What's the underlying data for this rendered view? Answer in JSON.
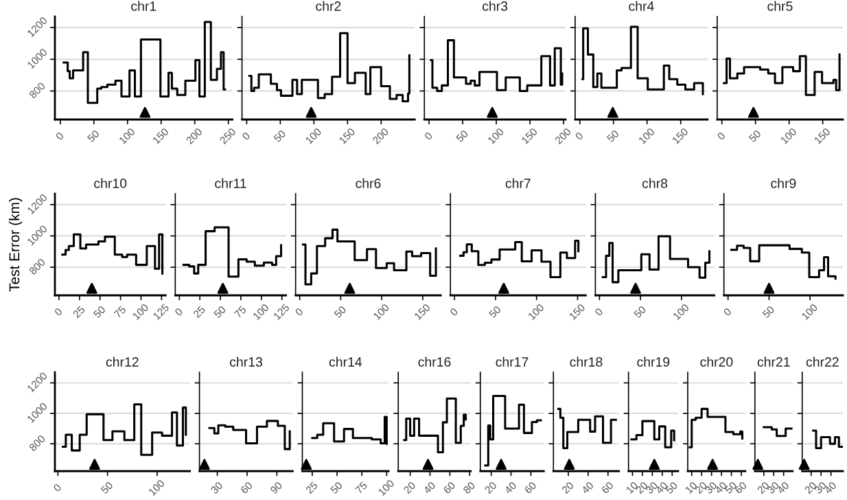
{
  "chart_data": [
    {
      "type": "step",
      "title": "chr1",
      "xlim": [
        -8,
        256
      ],
      "xticks": [
        0,
        50,
        100,
        150,
        200,
        250
      ],
      "ylim": [
        620,
        1270
      ],
      "yticks": [
        800,
        1000,
        1200
      ],
      "grid": "y",
      "series": [
        {
          "color": "#000000",
          "x": [
            5,
            11,
            14,
            19,
            34,
            41,
            55,
            61,
            70,
            82,
            91,
            103,
            111,
            120,
            149,
            161,
            166,
            174,
            186,
            201,
            207,
            215,
            224,
            233,
            239,
            243,
            245
          ],
          "values": [
            980,
            925,
            880,
            930,
            1045,
            725,
            815,
            825,
            840,
            865,
            765,
            930,
            765,
            1125,
            765,
            915,
            815,
            775,
            865,
            995,
            765,
            1235,
            870,
            940,
            1045,
            810,
            810
          ]
        },
        {
          "type": "scatter",
          "marker": "triangle",
          "color": "#000000",
          "x": [
            126
          ],
          "values": [
            665
          ]
        }
      ]
    },
    {
      "type": "step",
      "title": "chr2",
      "xlim": [
        -7,
        250
      ],
      "xticks": [
        0,
        50,
        100,
        150,
        200
      ],
      "ylim": [
        620,
        1270
      ],
      "yticks": [
        800,
        1000,
        1200
      ],
      "grid": "y",
      "tick_labels": "x",
      "series": [
        {
          "color": "#000000",
          "x": [
            4,
            7,
            11,
            18,
            36,
            45,
            51,
            68,
            75,
            82,
            106,
            116,
            127,
            139,
            150,
            161,
            177,
            184,
            200,
            213,
            223,
            232,
            240,
            242
          ],
          "values": [
            895,
            800,
            820,
            905,
            845,
            805,
            770,
            870,
            780,
            870,
            755,
            780,
            890,
            1165,
            850,
            915,
            780,
            950,
            830,
            750,
            775,
            735,
            785,
            1025
          ]
        },
        {
          "type": "scatter",
          "marker": "triangle",
          "color": "#000000",
          "x": [
            96
          ],
          "values": [
            665
          ]
        }
      ]
    },
    {
      "type": "step",
      "title": "chr3",
      "xlim": [
        -7,
        203
      ],
      "xticks": [
        0,
        50,
        100,
        150,
        200
      ],
      "ylim": [
        620,
        1270
      ],
      "yticks": [
        800,
        1000,
        1200
      ],
      "grid": "y",
      "tick_labels": "x",
      "series": [
        {
          "color": "#000000",
          "x": [
            3,
            5,
            12,
            19,
            28,
            37,
            55,
            62,
            68,
            75,
            101,
            114,
            135,
            146,
            167,
            180,
            187,
            196,
            198
          ],
          "values": [
            995,
            820,
            800,
            835,
            1120,
            885,
            845,
            865,
            835,
            920,
            805,
            885,
            800,
            835,
            1020,
            835,
            1070,
            840,
            910
          ]
        },
        {
          "type": "scatter",
          "marker": "triangle",
          "color": "#000000",
          "x": [
            94
          ],
          "values": [
            665
          ]
        }
      ]
    },
    {
      "type": "step",
      "title": "chr4",
      "xlim": [
        -7,
        190
      ],
      "xticks": [
        0,
        50,
        100,
        150
      ],
      "ylim": [
        620,
        1270
      ],
      "yticks": [
        800,
        1000,
        1200
      ],
      "grid": "y",
      "tick_labels": "x",
      "series": [
        {
          "color": "#000000",
          "x": [
            4,
            5,
            12,
            20,
            26,
            32,
            55,
            62,
            76,
            86,
            101,
            125,
            133,
            145,
            157,
            170,
            183
          ],
          "values": [
            875,
            1195,
            1030,
            825,
            910,
            820,
            930,
            945,
            1205,
            880,
            810,
            960,
            875,
            840,
            810,
            850,
            780
          ]
        },
        {
          "type": "scatter",
          "marker": "triangle",
          "color": "#000000",
          "x": [
            49
          ],
          "values": [
            665
          ]
        }
      ]
    },
    {
      "type": "step",
      "title": "chr5",
      "xlim": [
        -7,
        180
      ],
      "xticks": [
        0,
        50,
        100,
        150
      ],
      "ylim": [
        620,
        1270
      ],
      "yticks": [
        800,
        1000,
        1200
      ],
      "grid": "y",
      "tick_labels": "x",
      "series": [
        {
          "color": "#000000",
          "x": [
            3,
            7,
            12,
            23,
            33,
            57,
            69,
            79,
            90,
            106,
            116,
            125,
            138,
            149,
            166,
            170,
            175
          ],
          "values": [
            850,
            1005,
            880,
            910,
            950,
            935,
            910,
            850,
            950,
            925,
            1020,
            775,
            920,
            850,
            870,
            805,
            1030
          ]
        },
        {
          "type": "scatter",
          "marker": "triangle",
          "color": "#000000",
          "x": [
            47
          ],
          "values": [
            665
          ]
        }
      ]
    },
    {
      "type": "step",
      "title": "chr10",
      "ylabel": "Test Error (km)",
      "xlim": [
        -5,
        130
      ],
      "xticks": [
        0,
        25,
        50,
        75,
        100,
        125
      ],
      "ylim": [
        620,
        1270
      ],
      "yticks": [
        800,
        1000,
        1200
      ],
      "grid": "y",
      "series": [
        {
          "color": "#000000",
          "x": [
            4,
            8,
            12,
            18,
            26,
            33,
            48,
            56,
            68,
            77,
            83,
            94,
            107,
            117,
            122,
            126
          ],
          "values": [
            880,
            910,
            935,
            1010,
            920,
            945,
            965,
            995,
            880,
            865,
            880,
            815,
            935,
            790,
            1010,
            760
          ]
        },
        {
          "type": "scatter",
          "marker": "triangle",
          "color": "#000000",
          "x": [
            40
          ],
          "values": [
            665
          ]
        }
      ]
    },
    {
      "type": "step",
      "title": "chr11",
      "xlim": [
        -5,
        130
      ],
      "xticks": [
        0,
        25,
        50,
        75,
        100,
        125
      ],
      "ylim": [
        620,
        1270
      ],
      "yticks": [
        800,
        1000,
        1200
      ],
      "grid": "y",
      "tick_labels": "x",
      "series": [
        {
          "color": "#000000",
          "x": [
            5,
            12,
            18,
            23,
            32,
            43,
            60,
            72,
            82,
            92,
            103,
            113,
            118,
            124
          ],
          "values": [
            815,
            805,
            760,
            815,
            1030,
            1055,
            740,
            850,
            835,
            810,
            830,
            815,
            870,
            940
          ]
        },
        {
          "type": "scatter",
          "marker": "triangle",
          "color": "#000000",
          "x": [
            53
          ],
          "values": [
            665
          ]
        }
      ]
    },
    {
      "type": "step",
      "title": "chr6",
      "xlim": [
        -5,
        172
      ],
      "xticks": [
        0,
        50,
        100,
        150
      ],
      "ylim": [
        620,
        1270
      ],
      "yticks": [
        800,
        1000,
        1200
      ],
      "grid": "y",
      "tick_labels": "x",
      "series": [
        {
          "color": "#000000",
          "x": [
            4,
            7,
            14,
            21,
            31,
            40,
            46,
            67,
            82,
            93,
            106,
            115,
            130,
            137,
            148,
            159,
            166
          ],
          "values": [
            945,
            690,
            760,
            935,
            985,
            1040,
            965,
            845,
            915,
            795,
            825,
            780,
            900,
            870,
            890,
            745,
            920
          ]
        },
        {
          "type": "scatter",
          "marker": "triangle",
          "color": "#000000",
          "x": [
            61
          ],
          "values": [
            665
          ]
        }
      ]
    },
    {
      "type": "step",
      "title": "chr7",
      "xlim": [
        -5,
        160
      ],
      "xticks": [
        0,
        50,
        100,
        150
      ],
      "ylim": [
        620,
        1270
      ],
      "yticks": [
        800,
        1000,
        1200
      ],
      "grid": "y",
      "tick_labels": "x",
      "series": [
        {
          "color": "#000000",
          "x": [
            7,
            11,
            15,
            21,
            29,
            37,
            45,
            55,
            74,
            82,
            94,
            106,
            117,
            129,
            137,
            147,
            151
          ],
          "values": [
            873,
            896,
            946,
            902,
            814,
            829,
            849,
            913,
            960,
            837,
            908,
            835,
            736,
            893,
            858,
            969,
            902
          ]
        },
        {
          "type": "scatter",
          "marker": "triangle",
          "color": "#000000",
          "x": [
            60
          ],
          "values": [
            665
          ]
        }
      ]
    },
    {
      "type": "step",
      "title": "chr8",
      "xlim": [
        -5,
        140
      ],
      "xticks": [
        0,
        50,
        100
      ],
      "ylim": [
        620,
        1270
      ],
      "yticks": [
        800,
        1000,
        1200
      ],
      "grid": "y",
      "tick_labels": "x",
      "series": [
        {
          "color": "#000000",
          "x": [
            4,
            8,
            12,
            16,
            23,
            51,
            61,
            72,
            86,
            108,
            122,
            129,
            134
          ],
          "values": [
            736,
            873,
            955,
            704,
            780,
            882,
            785,
            998,
            853,
            800,
            733,
            829,
            902
          ]
        },
        {
          "type": "scatter",
          "marker": "triangle",
          "color": "#000000",
          "x": [
            44
          ],
          "values": [
            665
          ]
        }
      ]
    },
    {
      "type": "step",
      "title": "chr9",
      "xlim": [
        -5,
        140
      ],
      "xticks": [
        0,
        50,
        100
      ],
      "ylim": [
        620,
        1270
      ],
      "yticks": [
        800,
        1000,
        1200
      ],
      "grid": "y",
      "tick_labels": "x",
      "series": [
        {
          "color": "#000000",
          "x": [
            4,
            11,
            19,
            27,
            38,
            75,
            90,
            99,
            111,
            117,
            122,
            131
          ],
          "values": [
            911,
            937,
            923,
            838,
            940,
            917,
            893,
            736,
            780,
            864,
            742,
            727
          ]
        },
        {
          "type": "scatter",
          "marker": "triangle",
          "color": "#000000",
          "x": [
            50
          ],
          "values": [
            665
          ]
        }
      ]
    },
    {
      "type": "step",
      "title": "chr12",
      "xlim": [
        -3,
        133
      ],
      "xticks": [
        0,
        50,
        100
      ],
      "ylim": [
        620,
        1270
      ],
      "yticks": [
        800,
        1000,
        1200
      ],
      "grid": "y",
      "series": [
        {
          "color": "#000000",
          "x": [
            5,
            8,
            14,
            22,
            29,
            46,
            55,
            67,
            77,
            84,
            95,
            105,
            115,
            120,
            126,
            129
          ],
          "values": [
            780,
            859,
            756,
            859,
            994,
            824,
            882,
            824,
            1059,
            727,
            874,
            853,
            1006,
            788,
            1038,
            859
          ]
        },
        {
          "type": "scatter",
          "marker": "triangle",
          "color": "#000000",
          "x": [
            37
          ],
          "values": [
            665
          ]
        }
      ]
    },
    {
      "type": "step",
      "title": "chr13",
      "xlim": [
        12,
        106
      ],
      "xticks": [
        30,
        60,
        90
      ],
      "ylim": [
        620,
        1270
      ],
      "yticks": [
        800,
        1000,
        1200
      ],
      "grid": "y",
      "tick_labels": "x",
      "series": [
        {
          "color": "#000000",
          "x": [
            22,
            27,
            31,
            38,
            46,
            59,
            70,
            80,
            91,
            98,
            103
          ],
          "values": [
            903,
            868,
            921,
            912,
            891,
            803,
            912,
            950,
            918,
            765,
            882
          ]
        },
        {
          "type": "scatter",
          "marker": "triangle",
          "color": "#000000",
          "x": [
            17
          ],
          "values": [
            665
          ]
        }
      ]
    },
    {
      "type": "step",
      "title": "chr14",
      "xlim": [
        15,
        102
      ],
      "xticks": [
        25,
        50,
        75,
        100
      ],
      "ylim": [
        620,
        1270
      ],
      "yticks": [
        800,
        1000,
        1200
      ],
      "grid": "y",
      "tick_labels": "x",
      "series": [
        {
          "color": "#000000",
          "x": [
            25,
            30,
            36,
            47,
            57,
            66,
            85,
            94,
            98,
            100
          ],
          "values": [
            838,
            859,
            935,
            815,
            897,
            838,
            829,
            803,
            977,
            800
          ]
        },
        {
          "type": "scatter",
          "marker": "triangle",
          "color": "#000000",
          "x": [
            19
          ],
          "values": [
            665
          ]
        }
      ]
    },
    {
      "type": "step",
      "title": "chr16",
      "xlim": [
        8,
        81
      ],
      "xticks": [
        20,
        40,
        60,
        80
      ],
      "ylim": [
        620,
        1270
      ],
      "yticks": [
        800,
        1000,
        1200
      ],
      "grid": "y",
      "tick_labels": "x",
      "series": [
        {
          "color": "#000000",
          "x": [
            14,
            16,
            20,
            24,
            29,
            48,
            53,
            57,
            66,
            71,
            74,
            76
          ],
          "values": [
            824,
            965,
            853,
            965,
            853,
            744,
            941,
            1097,
            806,
            918,
            991,
            960
          ]
        },
        {
          "type": "scatter",
          "marker": "triangle",
          "color": "#000000",
          "x": [
            38
          ],
          "values": [
            665
          ]
        }
      ]
    },
    {
      "type": "step",
      "title": "chr17",
      "xlim": [
        9,
        73
      ],
      "xticks": [
        20,
        40,
        60
      ],
      "ylim": [
        620,
        1270
      ],
      "yticks": [
        800,
        1000,
        1200
      ],
      "grid": "y",
      "tick_labels": "x",
      "series": [
        {
          "color": "#000000",
          "x": [
            14,
            17,
            19,
            22,
            34,
            48,
            53,
            61,
            66,
            70
          ],
          "values": [
            657,
            920,
            829,
            1114,
            900,
            1057,
            871,
            943,
            954,
            954
          ]
        },
        {
          "type": "scatter",
          "marker": "triangle",
          "color": "#000000",
          "x": [
            30
          ],
          "values": [
            665
          ]
        }
      ]
    },
    {
      "type": "step",
      "title": "chr18",
      "xlim": [
        5,
        71
      ],
      "xticks": [
        20,
        40,
        60
      ],
      "ylim": [
        620,
        1270
      ],
      "yticks": [
        800,
        1000,
        1200
      ],
      "grid": "y",
      "tick_labels": "x",
      "series": [
        {
          "color": "#000000",
          "x": [
            10,
            12,
            15,
            19,
            30,
            42,
            47,
            55,
            63,
            68
          ],
          "values": [
            1029,
            971,
            771,
            877,
            957,
            880,
            980,
            806,
            957,
            957
          ]
        },
        {
          "type": "scatter",
          "marker": "triangle",
          "color": "#000000",
          "x": [
            21
          ],
          "values": [
            665
          ]
        }
      ]
    },
    {
      "type": "step",
      "title": "chr19",
      "xlim": [
        6,
        56
      ],
      "xticks": [
        10,
        20,
        30,
        40,
        50
      ],
      "ylim": [
        620,
        1270
      ],
      "yticks": [
        800,
        1000,
        1200
      ],
      "grid": "y",
      "tick_labels": "x",
      "series": [
        {
          "color": "#000000",
          "x": [
            9,
            14,
            20,
            32,
            37,
            43,
            49,
            52
          ],
          "values": [
            829,
            857,
            949,
            829,
            914,
            777,
            886,
            823
          ]
        },
        {
          "type": "scatter",
          "marker": "triangle",
          "color": "#000000",
          "x": [
            32
          ],
          "values": [
            665
          ]
        }
      ]
    },
    {
      "type": "step",
      "title": "chr20",
      "xlim": [
        6,
        64
      ],
      "xticks": [
        10,
        20,
        30,
        40,
        50,
        60
      ],
      "ylim": [
        620,
        1270
      ],
      "yticks": [
        800,
        1000,
        1200
      ],
      "grid": "y",
      "tick_labels": "x",
      "series": [
        {
          "color": "#000000",
          "x": [
            8,
            10,
            14,
            20,
            26,
            44,
            52,
            59,
            61
          ],
          "values": [
            777,
            957,
            971,
            1029,
            977,
            877,
            863,
            880,
            834
          ]
        },
        {
          "type": "scatter",
          "marker": "triangle",
          "color": "#000000",
          "x": [
            31
          ],
          "values": [
            665
          ]
        }
      ]
    },
    {
      "type": "step",
      "title": "chr21",
      "xlim": [
        11,
        49
      ],
      "xticks": [
        20,
        30,
        40
      ],
      "ylim": [
        620,
        1270
      ],
      "yticks": [
        800,
        1000,
        1200
      ],
      "grid": "y",
      "tick_labels": "x",
      "series": [
        {
          "color": "#000000",
          "x": [
            20,
            28,
            33,
            42,
            48
          ],
          "values": [
            909,
            894,
            851,
            900,
            900
          ]
        },
        {
          "type": "scatter",
          "marker": "triangle",
          "color": "#000000",
          "x": [
            14
          ],
          "values": [
            665
          ]
        }
      ]
    },
    {
      "type": "step",
      "title": "chr22",
      "xlim": [
        11,
        52
      ],
      "xticks": [
        20,
        30,
        40
      ],
      "ylim": [
        620,
        1270
      ],
      "yticks": [
        800,
        1000,
        1200
      ],
      "grid": "y",
      "tick_labels": "x",
      "series": [
        {
          "color": "#000000",
          "x": [
            22,
            25,
            30,
            39,
            44,
            48,
            51
          ],
          "values": [
            886,
            771,
            843,
            800,
            843,
            780,
            780
          ]
        },
        {
          "type": "scatter",
          "marker": "triangle",
          "color": "#000000",
          "x": [
            13
          ],
          "values": [
            665
          ]
        }
      ]
    }
  ]
}
